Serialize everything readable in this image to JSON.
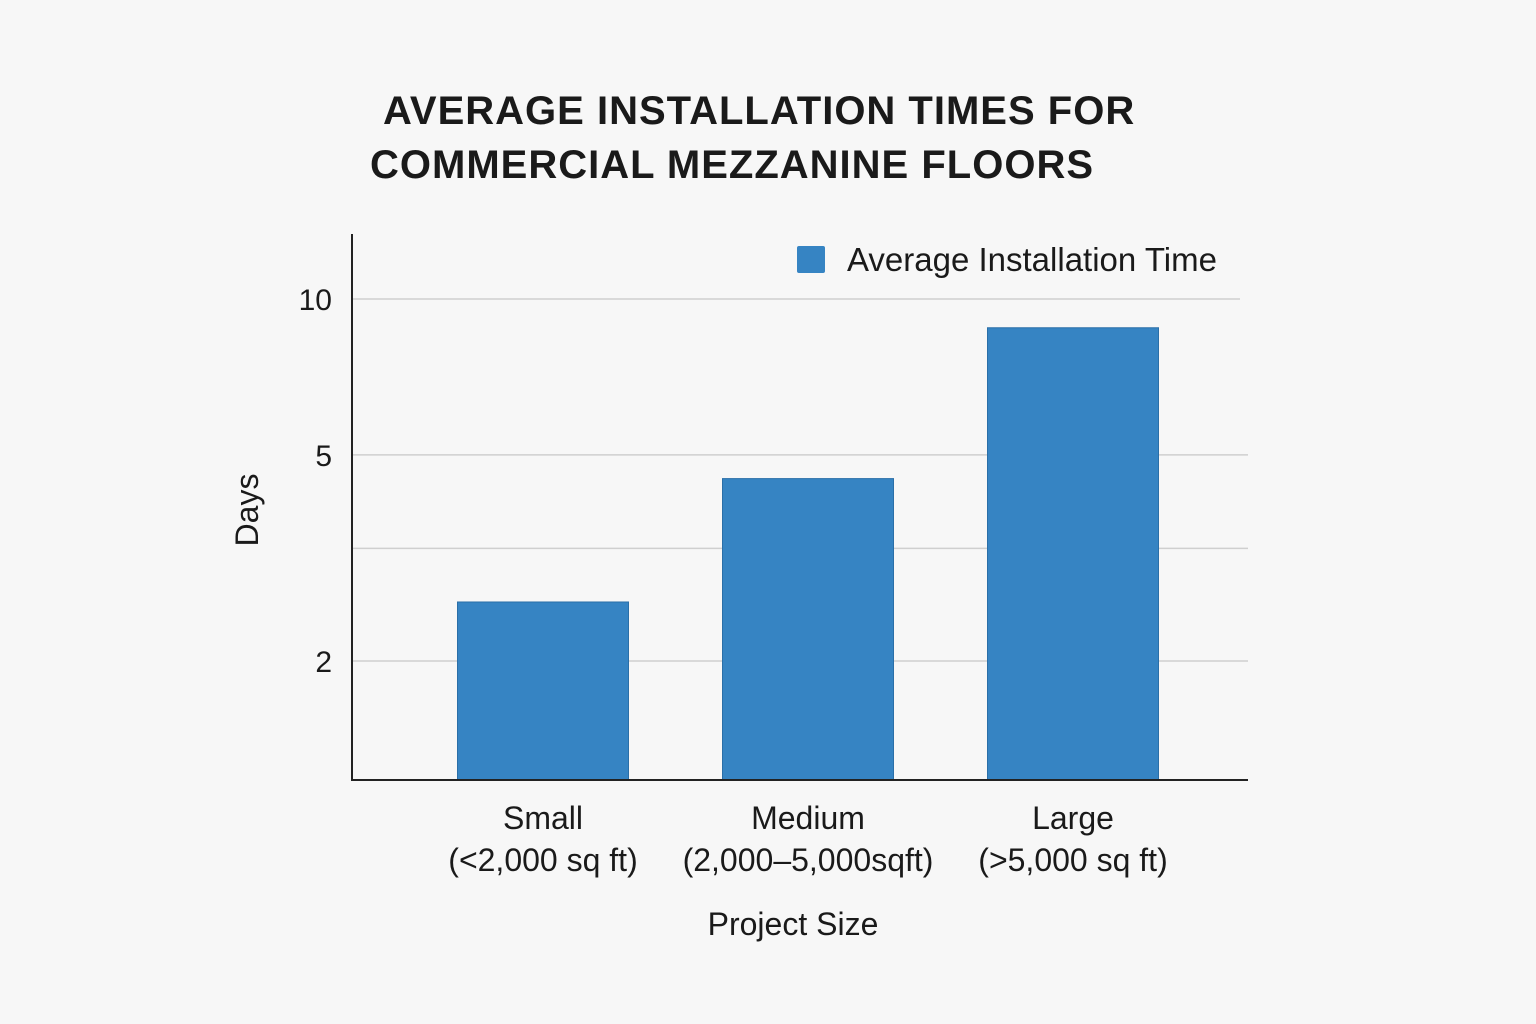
{
  "chart_data": {
    "type": "bar",
    "title_lines": [
      "AVERAGE INSTALLATION TIMES FOR",
      "COMMERCIAL MEZZANINE FLOORS"
    ],
    "xlabel": "Project Size",
    "ylabel": "Days",
    "y_scale": "log",
    "yticks": [
      {
        "value": 2,
        "label": "2"
      },
      {
        "value": 5,
        "label": "5"
      },
      {
        "value": 10,
        "label": "10"
      }
    ],
    "gridlines": [
      2,
      3.3,
      5,
      10
    ],
    "ylim": [
      1.1,
      13
    ],
    "categories": [
      {
        "name": "Small",
        "sub": "(<2,000 sq ft)"
      },
      {
        "name": "Medium",
        "sub": "(2,000–5,000sqft)"
      },
      {
        "name": "Large",
        "sub": "(>5,000 sq ft)"
      }
    ],
    "series": [
      {
        "name": "Average Installation Time",
        "color": "#3684c3",
        "values": [
          2.6,
          4.5,
          8.8
        ]
      }
    ],
    "legend": "top-right",
    "grid": true
  }
}
